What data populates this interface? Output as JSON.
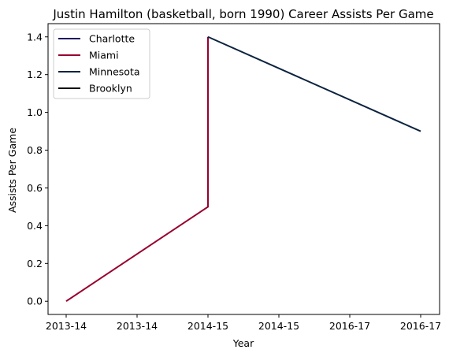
{
  "chart_data": {
    "type": "line",
    "title": "Justin Hamilton (basketball, born 1990) Career Assists Per Game",
    "xlabel": "Year",
    "ylabel": "Assists Per Game",
    "x_tick_labels": [
      "2013-14",
      "2013-14",
      "2014-15",
      "2014-15",
      "2016-17",
      "2016-17"
    ],
    "y_ticks": [
      0.0,
      0.2,
      0.4,
      0.6,
      0.8,
      1.0,
      1.2,
      1.4
    ],
    "y_tick_labels": [
      "0.0",
      "0.2",
      "0.4",
      "0.6",
      "0.8",
      "1.0",
      "1.2",
      "1.4"
    ],
    "ylim": [
      -0.07,
      1.47
    ],
    "legend_position": "upper left",
    "series": [
      {
        "name": "Charlotte",
        "color": "#1d1160",
        "points": []
      },
      {
        "name": "Miami",
        "color": "#98002e",
        "points": [
          [
            "2013-14",
            0.0
          ],
          [
            "2014-15",
            0.5
          ],
          [
            "2014-15",
            1.4
          ]
        ]
      },
      {
        "name": "Minnesota",
        "color": "#0c2340",
        "points": [
          [
            "2014-15",
            1.4
          ],
          [
            "2016-17",
            0.9
          ]
        ]
      },
      {
        "name": "Brooklyn",
        "color": "#000000",
        "points": []
      }
    ]
  }
}
